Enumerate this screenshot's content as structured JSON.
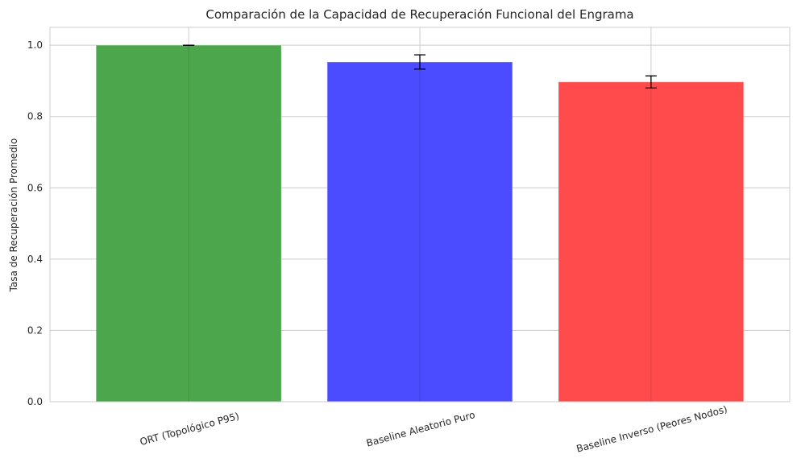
{
  "chart_data": {
    "type": "bar",
    "title": "Comparación de la Capacidad de Recuperación Funcional del Engrama",
    "xlabel": "",
    "ylabel": "Tasa de Recuperación Promedio",
    "categories": [
      "ORT (Topológico P95)",
      "Baseline Aleatorio Puro",
      "Baseline Inverso (Peores Nodos)"
    ],
    "values": [
      1.0,
      0.953,
      0.897
    ],
    "errors": [
      0.0,
      0.02,
      0.017
    ],
    "colors": [
      "#4ca64c",
      "#4b4bff",
      "#ff4b4b"
    ],
    "ylim": [
      0,
      1.05
    ],
    "yticks": [
      0.0,
      0.2,
      0.4,
      0.6,
      0.8,
      1.0
    ],
    "ytick_labels": [
      "0.0",
      "0.2",
      "0.4",
      "0.6",
      "0.8",
      "1.0"
    ],
    "grid": true
  }
}
